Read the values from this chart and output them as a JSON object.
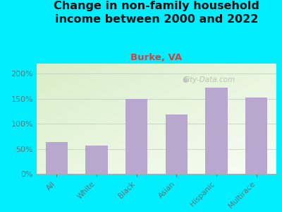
{
  "title": "Change in non-family household\nincome between 2000 and 2022",
  "subtitle": "Burke, VA",
  "categories": [
    "All",
    "White",
    "Black",
    "Asian",
    "Hispanic",
    "Multirace"
  ],
  "values": [
    63,
    57,
    150,
    118,
    172,
    152
  ],
  "bar_color": "#b8a8d0",
  "title_fontsize": 11.5,
  "subtitle_fontsize": 9.5,
  "subtitle_color": "#cc4444",
  "title_color": "#111111",
  "background_color": "#00eeff",
  "tick_color": "#557777",
  "watermark": "City-Data.com",
  "ylim": [
    0,
    220
  ],
  "yticks": [
    0,
    50,
    100,
    150,
    200
  ],
  "plot_bg_colors": [
    "#e8f5e0",
    "#f8fdf5"
  ]
}
